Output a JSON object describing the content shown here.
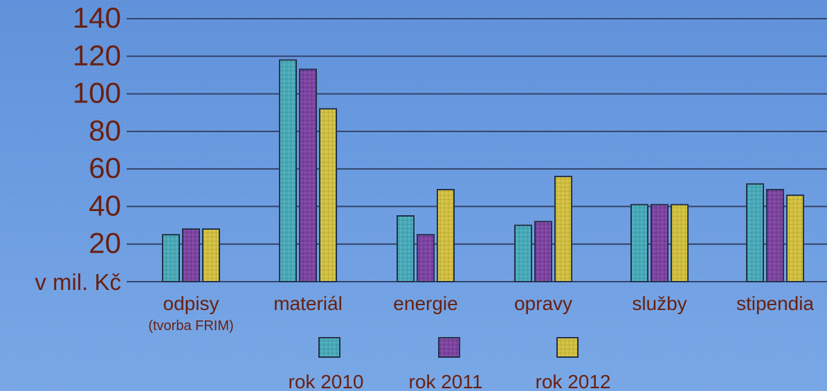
{
  "chart_data": {
    "type": "bar",
    "categories": [
      "odpisy",
      "materiál",
      "energie",
      "opravy",
      "služby",
      "stipendia"
    ],
    "category_sublabels": [
      "(tvorba FRIM)",
      "",
      "",
      "",
      "",
      ""
    ],
    "series": [
      {
        "name": "rok 2010",
        "values": [
          25,
          118,
          35,
          30,
          41,
          52
        ],
        "color": "#45a9b8"
      },
      {
        "name": "rok 2011",
        "values": [
          28,
          113,
          25,
          32,
          41,
          49
        ],
        "color": "#7b3fa0"
      },
      {
        "name": "rok 2012",
        "values": [
          28,
          92,
          49,
          56,
          41,
          46
        ],
        "color": "#d1bf3b"
      }
    ],
    "yticks": [
      20,
      40,
      60,
      80,
      100,
      120,
      140
    ],
    "ylabel": "v mil. Kč",
    "ylim": [
      0,
      140
    ],
    "grid": true,
    "legend_position": "bottom"
  },
  "colors": {
    "background": "#6a9be0",
    "grid": "#33436a",
    "text": "#6a1f0f",
    "bar_outline": "#20304a"
  }
}
